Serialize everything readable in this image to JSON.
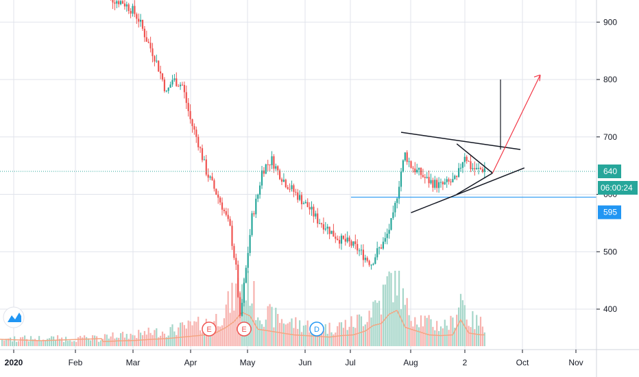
{
  "chart_data": {
    "type": "candlestick",
    "y_ticks": [
      400,
      500,
      600,
      700,
      800,
      900
    ],
    "x_ticks": [
      "2020",
      "Feb",
      "Mar",
      "Apr",
      "May",
      "Jun",
      "Jul",
      "Aug",
      "2",
      "Oct",
      "Nov"
    ],
    "ylim": [
      330,
      960
    ],
    "grid": true,
    "last_price": {
      "value": 640,
      "label": "640",
      "countdown": "06:00:24",
      "color": "#26a69a"
    },
    "level_line": {
      "value": 595,
      "label": "595",
      "color": "#2196f3"
    },
    "events": [
      {
        "label": "E",
        "date": "Apr",
        "color": "#ef5350"
      },
      {
        "label": "E",
        "date": "May",
        "color": "#ef5350"
      },
      {
        "label": "D",
        "date": "Jun",
        "color": "#2196f3"
      }
    ],
    "colors": {
      "up": "#26a69a",
      "down": "#ef5350",
      "volume_up": "#a5d6c9",
      "volume_down": "#f7b2ae",
      "ma": "#f4a582",
      "grid": "#e0e3eb",
      "arrow": "#f23645",
      "drawing": "#131722"
    },
    "price_series": [
      [
        0,
        945
      ],
      [
        5,
        940
      ],
      [
        10,
        935
      ],
      [
        15,
        920
      ],
      [
        18,
        905
      ],
      [
        22,
        870
      ],
      [
        26,
        840
      ],
      [
        30,
        800
      ],
      [
        32,
        775
      ],
      [
        35,
        800
      ],
      [
        40,
        790
      ],
      [
        44,
        730
      ],
      [
        48,
        690
      ],
      [
        52,
        640
      ],
      [
        56,
        610
      ],
      [
        60,
        580
      ],
      [
        64,
        540
      ],
      [
        67,
        470
      ],
      [
        69,
        380
      ],
      [
        72,
        470
      ],
      [
        75,
        560
      ],
      [
        78,
        600
      ],
      [
        80,
        640
      ],
      [
        82,
        650
      ],
      [
        85,
        660
      ],
      [
        88,
        640
      ],
      [
        92,
        620
      ],
      [
        96,
        605
      ],
      [
        100,
        590
      ],
      [
        104,
        575
      ],
      [
        108,
        555
      ],
      [
        112,
        545
      ],
      [
        116,
        530
      ],
      [
        120,
        520
      ],
      [
        124,
        515
      ],
      [
        128,
        505
      ],
      [
        132,
        490
      ],
      [
        135,
        480
      ],
      [
        138,
        500
      ],
      [
        142,
        520
      ],
      [
        146,
        560
      ],
      [
        148,
        600
      ],
      [
        150,
        640
      ],
      [
        152,
        670
      ],
      [
        155,
        650
      ],
      [
        158,
        640
      ],
      [
        160,
        635
      ],
      [
        163,
        625
      ],
      [
        166,
        620
      ],
      [
        170,
        615
      ],
      [
        174,
        620
      ],
      [
        178,
        625
      ],
      [
        180,
        650
      ],
      [
        182,
        670
      ],
      [
        185,
        648
      ],
      [
        188,
        642
      ],
      [
        192,
        645
      ]
    ],
    "volume_series": [
      [
        0,
        0.12
      ],
      [
        8,
        0.14
      ],
      [
        16,
        0.15
      ],
      [
        24,
        0.18
      ],
      [
        32,
        0.2
      ],
      [
        40,
        0.24
      ],
      [
        48,
        0.28
      ],
      [
        56,
        0.33
      ],
      [
        62,
        0.5
      ],
      [
        66,
        0.65
      ],
      [
        70,
        0.9
      ],
      [
        74,
        0.8
      ],
      [
        78,
        0.45
      ],
      [
        84,
        0.4
      ],
      [
        90,
        0.35
      ],
      [
        96,
        0.3
      ],
      [
        102,
        0.28
      ],
      [
        108,
        0.26
      ],
      [
        114,
        0.24
      ],
      [
        120,
        0.28
      ],
      [
        126,
        0.3
      ],
      [
        132,
        0.4
      ],
      [
        136,
        0.55
      ],
      [
        140,
        0.6
      ],
      [
        144,
        0.85
      ],
      [
        148,
        0.95
      ],
      [
        152,
        0.5
      ],
      [
        158,
        0.4
      ],
      [
        164,
        0.3
      ],
      [
        170,
        0.28
      ],
      [
        176,
        0.3
      ],
      [
        180,
        0.7
      ],
      [
        184,
        0.35
      ],
      [
        190,
        0.3
      ]
    ],
    "annotations": {
      "triangle_upper": [
        [
          150,
          708
        ],
        [
          210,
          678
        ]
      ],
      "triangle_lower": [
        [
          155,
          568
        ],
        [
          212,
          646
        ]
      ],
      "inner_upper": [
        [
          178,
          688
        ],
        [
          196,
          637
        ]
      ],
      "inner_lower": [
        [
          178,
          600
        ],
        [
          196,
          637
        ]
      ],
      "pole": [
        [
          200,
          800
        ],
        [
          200,
          678
        ]
      ],
      "arrow": [
        [
          196,
          637
        ],
        [
          220,
          808
        ]
      ]
    }
  }
}
